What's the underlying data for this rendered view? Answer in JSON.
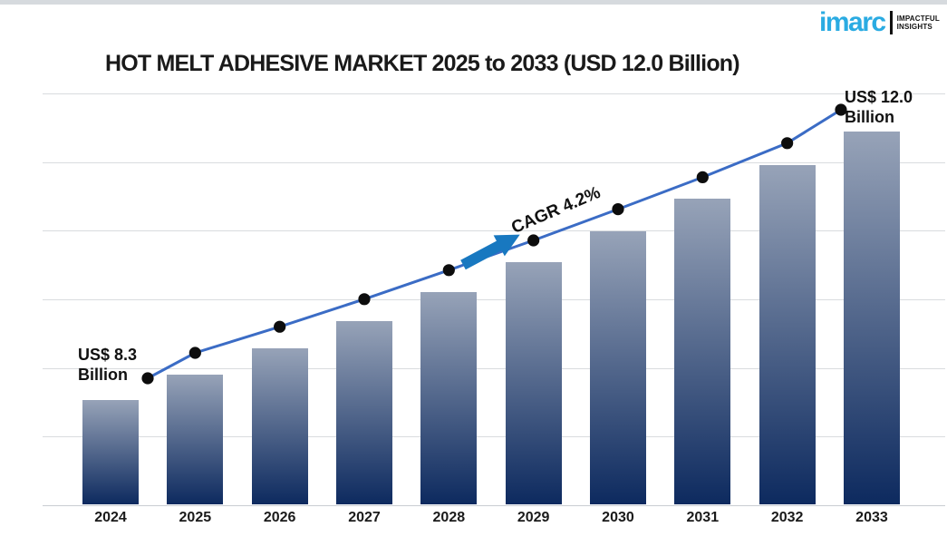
{
  "page": {
    "top_strip_color": "#d6dade"
  },
  "header": {
    "title": "HOT MELT ADHESIVE MARKET 2025 to 2033 (USD 12.0 Billion)",
    "logo": {
      "brand": "imarc",
      "tagline_line1": "IMPACTFUL",
      "tagline_line2": "INSIGHTS"
    }
  },
  "annotations": {
    "start_line1": "US$ 8.3",
    "start_line2": "Billion",
    "end_line1": "US$ 12.0",
    "end_line2": "Billion",
    "cagr": "CAGR 4.2%"
  },
  "chart_data": {
    "type": "bar",
    "title": "HOT MELT ADHESIVE MARKET 2025 to 2033 (USD 12.0 Billion)",
    "categories": [
      "2024",
      "2025",
      "2026",
      "2027",
      "2028",
      "2029",
      "2030",
      "2031",
      "2032",
      "2033"
    ],
    "series": [
      {
        "name": "Market size (USD Billion) bars",
        "type": "bar",
        "values": [
          8.3,
          8.65,
          9.01,
          9.39,
          9.79,
          10.2,
          10.63,
          11.07,
          11.54,
          12.0
        ]
      },
      {
        "name": "Market size trend line",
        "type": "line",
        "values": [
          8.3,
          8.65,
          9.01,
          9.39,
          9.79,
          10.2,
          10.63,
          11.07,
          11.54,
          12.0
        ]
      }
    ],
    "value_labels": {
      "2024": "US$ 8.3 Billion",
      "2033": "US$ 12.0 Billion"
    },
    "cagr_annotation": "CAGR 4.2%",
    "xlabel": "",
    "ylabel": "",
    "ylim": [
      6.85,
      12.65
    ],
    "grid": true,
    "gridline_count": 7,
    "y_tick_labels_visible": false,
    "legend": "none",
    "colors": {
      "bar_gradient_top": "#97a3b8",
      "bar_gradient_bottom": "#0d2a5f",
      "line": "#3b6cc5",
      "marker": "#0d0d0d",
      "arrow": "#1878c0",
      "gridline": "#d9dcdf",
      "axis_line": "#c9cdd2",
      "title_color": "#1a1a1a",
      "logo_blue": "#2aabe2"
    }
  }
}
